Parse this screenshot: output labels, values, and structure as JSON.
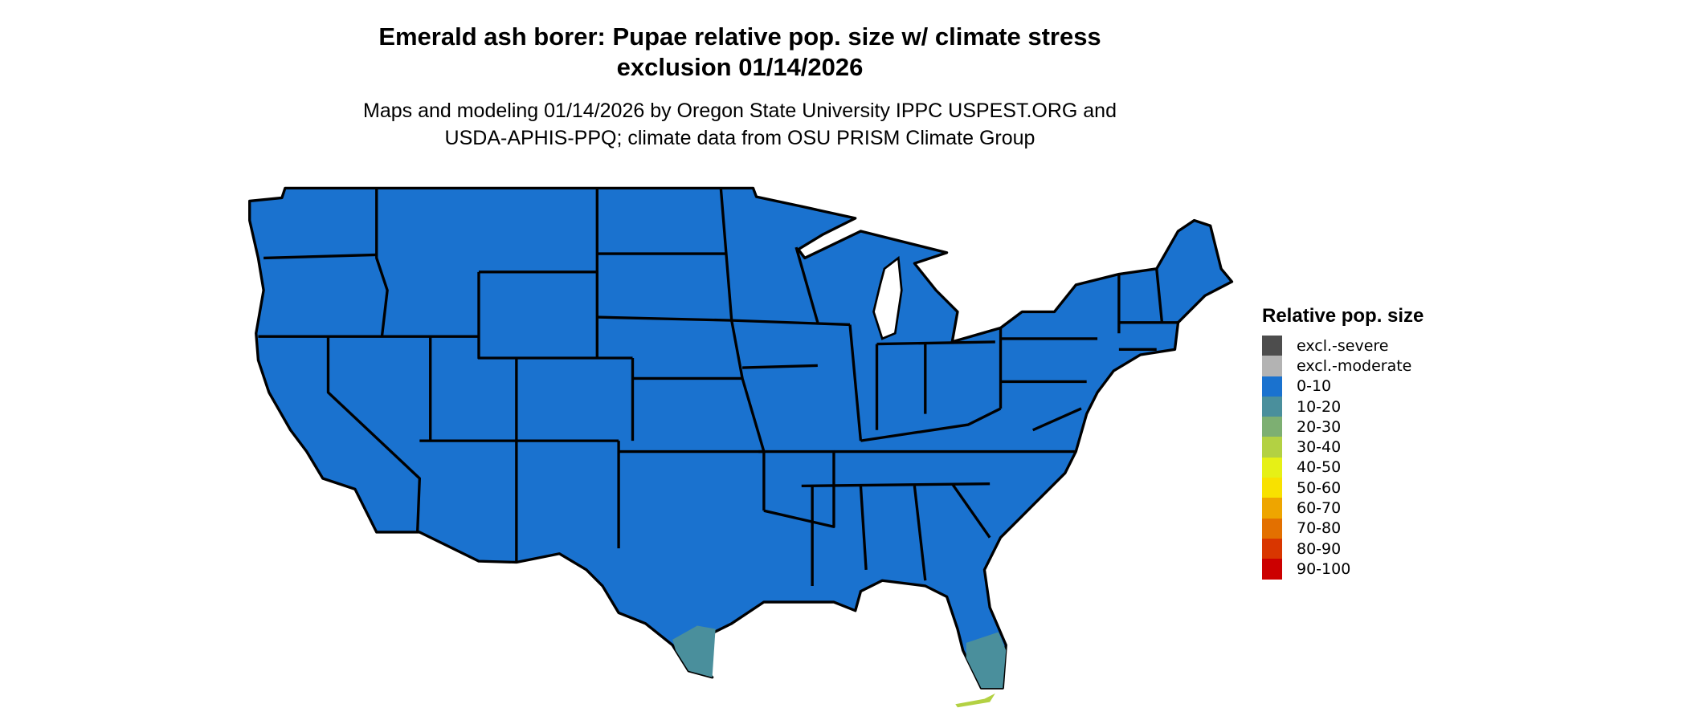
{
  "title": {
    "line1": "Emerald ash borer: Pupae relative pop. size w/ climate stress",
    "line2": "exclusion 01/14/2026"
  },
  "subtitle": {
    "line1": "Maps and modeling 01/14/2026 by Oregon State University IPPC USPEST.ORG and",
    "line2": "USDA-APHIS-PPQ; climate data from OSU PRISM Climate Group"
  },
  "map": {
    "region": "Contiguous United States",
    "dominant_class": "0-10",
    "hotspot_classes": [
      "10-20",
      "30-40"
    ]
  },
  "legend": {
    "title": "Relative pop. size",
    "items": [
      {
        "label": "excl.-severe",
        "color": "#4d4d4d"
      },
      {
        "label": "excl.-moderate",
        "color": "#b3b3b3"
      },
      {
        "label": "0-10",
        "color": "#1a72cf"
      },
      {
        "label": "10-20",
        "color": "#4a8f9c"
      },
      {
        "label": "20-30",
        "color": "#7daf72"
      },
      {
        "label": "30-40",
        "color": "#b3d143"
      },
      {
        "label": "40-50",
        "color": "#e6f016"
      },
      {
        "label": "50-60",
        "color": "#f8e100"
      },
      {
        "label": "60-70",
        "color": "#eea500"
      },
      {
        "label": "70-80",
        "color": "#e37000"
      },
      {
        "label": "80-90",
        "color": "#d93600"
      },
      {
        "label": "90-100",
        "color": "#cc0000"
      }
    ]
  }
}
